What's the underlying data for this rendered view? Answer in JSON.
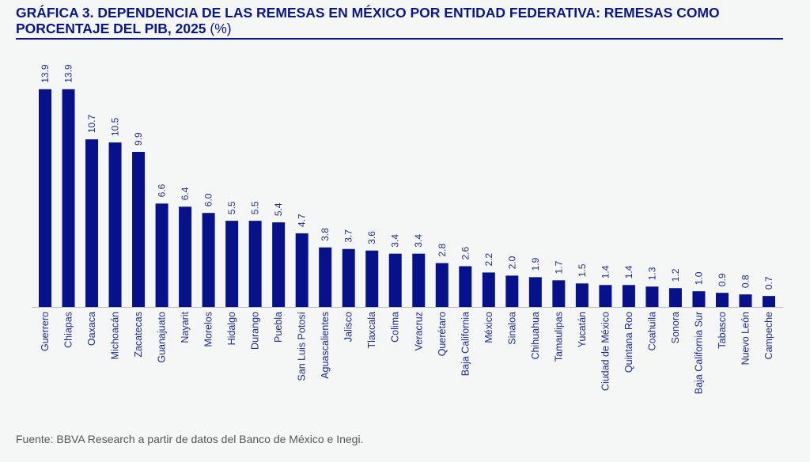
{
  "title": {
    "main": "GRÁFICA 3. DEPENDENCIA DE LAS REMESAS EN MÉXICO POR ENTIDAD FEDERATIVA: REMESAS COMO PORCENTAJE DEL PIB, 2025",
    "unit": "(%)"
  },
  "source": "Fuente: BBVA Research a partir de datos del Banco de México e Inegi.",
  "colors": {
    "bar": "#06118a",
    "title": "#0b168a",
    "label": "#1c2a8c"
  },
  "chart_data": {
    "type": "bar",
    "title": "GRÁFICA 3. DEPENDENCIA DE LAS REMESAS EN MÉXICO POR ENTIDAD FEDERATIVA: REMESAS COMO PORCENTAJE DEL PIB, 2025 (%)",
    "xlabel": "",
    "ylabel": "",
    "ylim": [
      0,
      14
    ],
    "grid": false,
    "data_labels": true,
    "categories": [
      "Guerrero",
      "Chiapas",
      "Oaxaca",
      "Michoacán",
      "Zacatecas",
      "Guanajuato",
      "Nayarit",
      "Morelos",
      "Hidalgo",
      "Durango",
      "Puebla",
      "San Luis Potosí",
      "Aguascalientes",
      "Jalisco",
      "Tlaxcala",
      "Colima",
      "Veracruz",
      "Querétaro",
      "Baja California",
      "México",
      "Sinaloa",
      "Chihuahua",
      "Tamaulipas",
      "Yucatán",
      "Ciudad de México",
      "Quintana Roo",
      "Coahuila",
      "Sonora",
      "Baja California Sur",
      "Tabasco",
      "Nuevo León",
      "Campeche"
    ],
    "values": [
      13.9,
      13.9,
      10.7,
      10.5,
      9.9,
      6.6,
      6.4,
      6.0,
      5.5,
      5.5,
      5.4,
      4.7,
      3.8,
      3.7,
      3.6,
      3.4,
      3.4,
      2.8,
      2.6,
      2.2,
      2.0,
      1.9,
      1.7,
      1.5,
      1.4,
      1.4,
      1.3,
      1.2,
      1.0,
      0.9,
      0.8,
      0.7
    ]
  }
}
